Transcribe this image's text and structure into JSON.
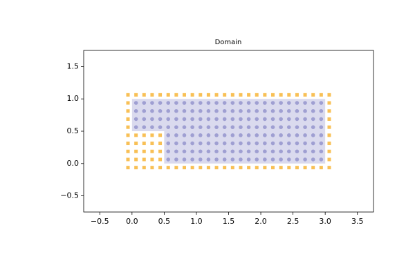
{
  "chart_data": {
    "type": "scatter",
    "title": "Domain",
    "xlim": [
      -0.75,
      3.75
    ],
    "ylim": [
      -0.75,
      1.75
    ],
    "xticks": [
      {
        "value": -0.5,
        "label": "−0.5"
      },
      {
        "value": 0,
        "label": "0.0"
      },
      0.5,
      {
        "value": 1,
        "label": "1.0"
      },
      1.5,
      {
        "value": 2,
        "label": "2.0"
      },
      2.5,
      {
        "value": 3,
        "label": "3.0"
      },
      3.5
    ],
    "yticks": [
      {
        "value": -0.5,
        "label": "−0.5"
      },
      {
        "value": 0,
        "label": "0.0"
      },
      0.5,
      {
        "value": 1,
        "label": "1.0"
      },
      1.5
    ],
    "grid": false,
    "region": {
      "color": "#dadaee",
      "x": [
        0,
        0.5,
        0.5,
        3,
        3,
        0
      ],
      "y": [
        0.5,
        0.5,
        0,
        0,
        1,
        1
      ]
    },
    "series": [
      {
        "color": "#f7b538",
        "marker": "square",
        "x": [
          -0.0625,
          0.0625,
          0.1875,
          0.3125,
          0.4375,
          0.5625,
          0.6875,
          0.8125,
          0.9375,
          1.0625,
          1.1875,
          1.3125,
          1.4375,
          1.5625,
          1.6875,
          1.8125,
          1.9375,
          2.0625,
          2.1875,
          2.3125,
          2.4375,
          2.5625,
          2.6875,
          2.8125,
          2.9375,
          3.0625,
          -0.0625,
          0.0625,
          0.1875,
          0.3125,
          0.4375,
          0.5625,
          0.6875,
          0.8125,
          0.9375,
          1.0625,
          1.1875,
          1.3125,
          1.4375,
          1.5625,
          1.6875,
          1.8125,
          1.9375,
          2.0625,
          2.1875,
          2.3125,
          2.4375,
          2.5625,
          2.6875,
          2.8125,
          2.9375,
          3.0625,
          -0.0625,
          3.0625,
          -0.0625,
          3.0625,
          -0.0625,
          3.0625,
          -0.0625,
          3.0625,
          -0.0625,
          0.0625,
          0.1875,
          0.3125,
          0.4375,
          3.0625,
          -0.0625,
          0.0625,
          0.1875,
          0.3125,
          0.4375,
          3.0625,
          -0.0625,
          0.0625,
          0.1875,
          0.3125,
          0.4375,
          3.0625,
          -0.0625,
          0.0625,
          0.1875,
          0.3125,
          0.4375,
          3.0625
        ],
        "y": [
          1.0625,
          1.0625,
          1.0625,
          1.0625,
          1.0625,
          1.0625,
          1.0625,
          1.0625,
          1.0625,
          1.0625,
          1.0625,
          1.0625,
          1.0625,
          1.0625,
          1.0625,
          1.0625,
          1.0625,
          1.0625,
          1.0625,
          1.0625,
          1.0625,
          1.0625,
          1.0625,
          1.0625,
          1.0625,
          1.0625,
          -0.0625,
          -0.0625,
          -0.0625,
          -0.0625,
          -0.0625,
          -0.0625,
          -0.0625,
          -0.0625,
          -0.0625,
          -0.0625,
          -0.0625,
          -0.0625,
          -0.0625,
          -0.0625,
          -0.0625,
          -0.0625,
          -0.0625,
          -0.0625,
          -0.0625,
          -0.0625,
          -0.0625,
          -0.0625,
          -0.0625,
          -0.0625,
          -0.0625,
          -0.0625,
          0.9375,
          0.9375,
          0.8125,
          0.8125,
          0.6875,
          0.6875,
          0.5625,
          0.5625,
          0.4375,
          0.4375,
          0.4375,
          0.4375,
          0.4375,
          0.4375,
          0.3125,
          0.3125,
          0.3125,
          0.3125,
          0.3125,
          0.3125,
          0.1875,
          0.1875,
          0.1875,
          0.1875,
          0.1875,
          0.1875,
          0.0625,
          0.0625,
          0.0625,
          0.0625,
          0.0625,
          0.0625
        ]
      },
      {
        "color": "#8b8bc8",
        "marker": "circle",
        "x": [
          0.0625,
          0.1875,
          0.3125,
          0.4375,
          0.5625,
          0.6875,
          0.8125,
          0.9375,
          1.0625,
          1.1875,
          1.3125,
          1.4375,
          1.5625,
          1.6875,
          1.8125,
          1.9375,
          2.0625,
          2.1875,
          2.3125,
          2.4375,
          2.5625,
          2.6875,
          2.8125,
          2.9375,
          0.0625,
          0.1875,
          0.3125,
          0.4375,
          0.5625,
          0.6875,
          0.8125,
          0.9375,
          1.0625,
          1.1875,
          1.3125,
          1.4375,
          1.5625,
          1.6875,
          1.8125,
          1.9375,
          2.0625,
          2.1875,
          2.3125,
          2.4375,
          2.5625,
          2.6875,
          2.8125,
          2.9375,
          0.0625,
          0.1875,
          0.3125,
          0.4375,
          0.5625,
          0.6875,
          0.8125,
          0.9375,
          1.0625,
          1.1875,
          1.3125,
          1.4375,
          1.5625,
          1.6875,
          1.8125,
          1.9375,
          2.0625,
          2.1875,
          2.3125,
          2.4375,
          2.5625,
          2.6875,
          2.8125,
          2.9375,
          0.0625,
          0.1875,
          0.3125,
          0.4375,
          0.5625,
          0.6875,
          0.8125,
          0.9375,
          1.0625,
          1.1875,
          1.3125,
          1.4375,
          1.5625,
          1.6875,
          1.8125,
          1.9375,
          2.0625,
          2.1875,
          2.3125,
          2.4375,
          2.5625,
          2.6875,
          2.8125,
          2.9375,
          0.5625,
          0.6875,
          0.8125,
          0.9375,
          1.0625,
          1.1875,
          1.3125,
          1.4375,
          1.5625,
          1.6875,
          1.8125,
          1.9375,
          2.0625,
          2.1875,
          2.3125,
          2.4375,
          2.5625,
          2.6875,
          2.8125,
          2.9375,
          0.5625,
          0.6875,
          0.8125,
          0.9375,
          1.0625,
          1.1875,
          1.3125,
          1.4375,
          1.5625,
          1.6875,
          1.8125,
          1.9375,
          2.0625,
          2.1875,
          2.3125,
          2.4375,
          2.5625,
          2.6875,
          2.8125,
          2.9375,
          0.5625,
          0.6875,
          0.8125,
          0.9375,
          1.0625,
          1.1875,
          1.3125,
          1.4375,
          1.5625,
          1.6875,
          1.8125,
          1.9375,
          2.0625,
          2.1875,
          2.3125,
          2.4375,
          2.5625,
          2.6875,
          2.8125,
          2.9375,
          0.5625,
          0.6875,
          0.8125,
          0.9375,
          1.0625,
          1.1875,
          1.3125,
          1.4375,
          1.5625,
          1.6875,
          1.8125,
          1.9375,
          2.0625,
          2.1875,
          2.3125,
          2.4375,
          2.5625,
          2.6875,
          2.8125,
          2.9375
        ],
        "y": [
          0.9375,
          0.9375,
          0.9375,
          0.9375,
          0.9375,
          0.9375,
          0.9375,
          0.9375,
          0.9375,
          0.9375,
          0.9375,
          0.9375,
          0.9375,
          0.9375,
          0.9375,
          0.9375,
          0.9375,
          0.9375,
          0.9375,
          0.9375,
          0.9375,
          0.9375,
          0.9375,
          0.9375,
          0.8125,
          0.8125,
          0.8125,
          0.8125,
          0.8125,
          0.8125,
          0.8125,
          0.8125,
          0.8125,
          0.8125,
          0.8125,
          0.8125,
          0.8125,
          0.8125,
          0.8125,
          0.8125,
          0.8125,
          0.8125,
          0.8125,
          0.8125,
          0.8125,
          0.8125,
          0.8125,
          0.8125,
          0.6875,
          0.6875,
          0.6875,
          0.6875,
          0.6875,
          0.6875,
          0.6875,
          0.6875,
          0.6875,
          0.6875,
          0.6875,
          0.6875,
          0.6875,
          0.6875,
          0.6875,
          0.6875,
          0.6875,
          0.6875,
          0.6875,
          0.6875,
          0.6875,
          0.6875,
          0.6875,
          0.6875,
          0.5625,
          0.5625,
          0.5625,
          0.5625,
          0.5625,
          0.5625,
          0.5625,
          0.5625,
          0.5625,
          0.5625,
          0.5625,
          0.5625,
          0.5625,
          0.5625,
          0.5625,
          0.5625,
          0.5625,
          0.5625,
          0.5625,
          0.5625,
          0.5625,
          0.5625,
          0.5625,
          0.5625,
          0.4375,
          0.4375,
          0.4375,
          0.4375,
          0.4375,
          0.4375,
          0.4375,
          0.4375,
          0.4375,
          0.4375,
          0.4375,
          0.4375,
          0.4375,
          0.4375,
          0.4375,
          0.4375,
          0.4375,
          0.4375,
          0.4375,
          0.4375,
          0.3125,
          0.3125,
          0.3125,
          0.3125,
          0.3125,
          0.3125,
          0.3125,
          0.3125,
          0.3125,
          0.3125,
          0.3125,
          0.3125,
          0.3125,
          0.3125,
          0.3125,
          0.3125,
          0.3125,
          0.3125,
          0.3125,
          0.3125,
          0.1875,
          0.1875,
          0.1875,
          0.1875,
          0.1875,
          0.1875,
          0.1875,
          0.1875,
          0.1875,
          0.1875,
          0.1875,
          0.1875,
          0.1875,
          0.1875,
          0.1875,
          0.1875,
          0.1875,
          0.1875,
          0.1875,
          0.1875,
          0.0625,
          0.0625,
          0.0625,
          0.0625,
          0.0625,
          0.0625,
          0.0625,
          0.0625,
          0.0625,
          0.0625,
          0.0625,
          0.0625,
          0.0625,
          0.0625,
          0.0625,
          0.0625,
          0.0625,
          0.0625,
          0.0625,
          0.0625
        ]
      }
    ]
  }
}
